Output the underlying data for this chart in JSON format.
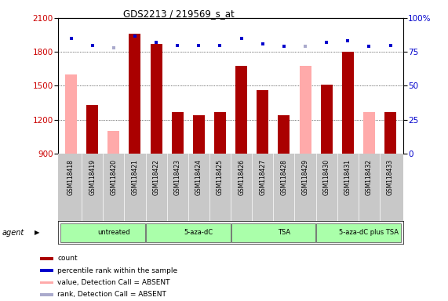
{
  "title": "GDS2213 / 219569_s_at",
  "samples": [
    "GSM118418",
    "GSM118419",
    "GSM118420",
    "GSM118421",
    "GSM118422",
    "GSM118423",
    "GSM118424",
    "GSM118425",
    "GSM118426",
    "GSM118427",
    "GSM118428",
    "GSM118429",
    "GSM118430",
    "GSM118431",
    "GSM118432",
    "GSM118433"
  ],
  "count_values": [
    1600,
    1330,
    1100,
    1960,
    1870,
    1270,
    1240,
    1270,
    1680,
    1460,
    1240,
    1680,
    1510,
    1800,
    1270,
    1270
  ],
  "count_absent": [
    true,
    false,
    true,
    false,
    false,
    false,
    false,
    false,
    false,
    false,
    false,
    true,
    false,
    false,
    true,
    false
  ],
  "percentile_values": [
    85,
    80,
    78,
    87,
    82,
    80,
    80,
    80,
    85,
    81,
    79,
    79,
    82,
    83,
    79,
    80
  ],
  "percentile_absent": [
    false,
    false,
    true,
    false,
    false,
    false,
    false,
    false,
    false,
    false,
    false,
    true,
    false,
    false,
    false,
    false
  ],
  "ylim_left": [
    900,
    2100
  ],
  "ylim_right": [
    0,
    100
  ],
  "yticks_left": [
    900,
    1200,
    1500,
    1800,
    2100
  ],
  "yticks_right": [
    0,
    25,
    50,
    75,
    100
  ],
  "groups": [
    {
      "label": "untreated",
      "start": 0,
      "end": 4
    },
    {
      "label": "5-aza-dC",
      "start": 4,
      "end": 8
    },
    {
      "label": "TSA",
      "start": 8,
      "end": 12
    },
    {
      "label": "5-aza-dC plus TSA",
      "start": 12,
      "end": 16
    }
  ],
  "bar_color_present": "#aa0000",
  "bar_color_absent": "#ffaaaa",
  "dot_color_present": "#0000cc",
  "dot_color_absent": "#aaaacc",
  "axis_label_color_left": "#cc0000",
  "axis_label_color_right": "#0000cc",
  "legend_items": [
    {
      "label": "count",
      "color": "#aa0000"
    },
    {
      "label": "percentile rank within the sample",
      "color": "#0000cc"
    },
    {
      "label": "value, Detection Call = ABSENT",
      "color": "#ffaaaa"
    },
    {
      "label": "rank, Detection Call = ABSENT",
      "color": "#aaaacc"
    }
  ]
}
